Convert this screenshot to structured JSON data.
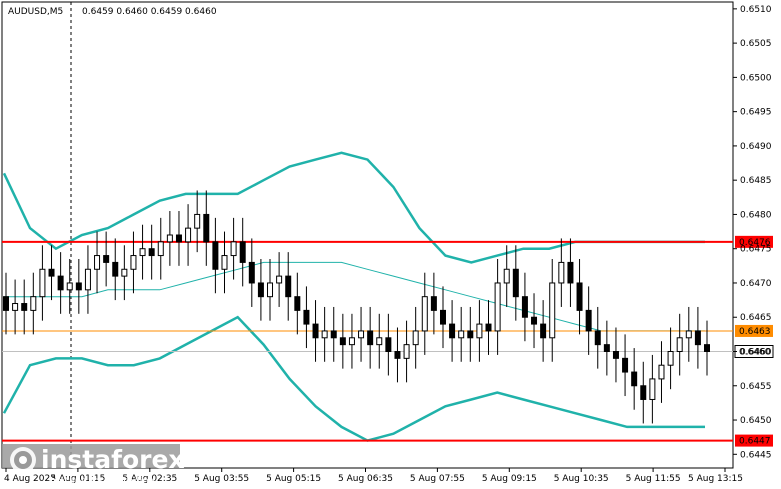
{
  "header": {
    "symbol_tf": "AUDUSD,M5",
    "ohlc": "0.6459 0.6460 0.6459 0.6460"
  },
  "watermark": {
    "brand": "instaforex",
    "tagline": "Instant Forex Trading"
  },
  "colors": {
    "bull_candle": "#000000",
    "bear_candle": "#000000",
    "bollinger": "#20b2aa",
    "support_resistance": "#ff0000",
    "orange_level": "#ff8c00",
    "price_line": "#c0c0c0"
  },
  "chart_data": {
    "type": "candlestick",
    "title": "AUDUSD,M5",
    "ylim": [
      0.6443,
      0.6511
    ],
    "y_ticks": [
      "0.6510",
      "0.6505",
      "0.6500",
      "0.6495",
      "0.6490",
      "0.6485",
      "0.6480",
      "0.6475",
      "0.6470",
      "0.6465",
      "0.6460",
      "0.6455",
      "0.6450",
      "0.6445"
    ],
    "x_tick_labels": [
      "4 Aug 2023",
      "5 Aug 01:15",
      "5 Aug 02:35",
      "5 Aug 03:55",
      "5 Aug 05:15",
      "5 Aug 06:35",
      "5 Aug 07:55",
      "5 Aug 09:15",
      "5 Aug 10:35",
      "5 Aug 11:55",
      "5 Aug 13:15"
    ],
    "levels": [
      {
        "name": "resistance",
        "value": "0.6476",
        "color": "#ff0000"
      },
      {
        "name": "orange-level",
        "value": "0.6463",
        "color": "#ff8c00"
      },
      {
        "name": "current-price",
        "value": "0.6460",
        "color": "#c0c0c0"
      },
      {
        "name": "support",
        "value": "0.6447",
        "color": "#ff0000"
      }
    ],
    "closes": [
      0.6466,
      0.6467,
      0.6466,
      0.6468,
      0.6472,
      0.6471,
      0.6469,
      0.647,
      0.6469,
      0.6472,
      0.6474,
      0.6473,
      0.6471,
      0.6472,
      0.6474,
      0.6475,
      0.6474,
      0.6476,
      0.6477,
      0.6476,
      0.6478,
      0.648,
      0.6476,
      0.6472,
      0.6474,
      0.6476,
      0.6473,
      0.647,
      0.6468,
      0.647,
      0.6471,
      0.6468,
      0.6466,
      0.6464,
      0.6462,
      0.6463,
      0.6462,
      0.6461,
      0.6462,
      0.6463,
      0.6461,
      0.6462,
      0.646,
      0.6459,
      0.6461,
      0.6463,
      0.6468,
      0.6466,
      0.6464,
      0.6462,
      0.6463,
      0.6462,
      0.6464,
      0.6463,
      0.647,
      0.6472,
      0.6468,
      0.6465,
      0.6464,
      0.6462,
      0.647,
      0.6473,
      0.647,
      0.6466,
      0.6463,
      0.6461,
      0.646,
      0.6459,
      0.6457,
      0.6455,
      0.6453,
      0.6456,
      0.6458,
      0.646,
      0.6462,
      0.6463,
      0.6461,
      0.646
    ],
    "series": [
      {
        "name": "",
        "role": "middle",
        "values": [
          0.6468,
          0.6468,
          0.6468,
          0.6468,
          0.6469,
          0.6469,
          0.6469,
          0.647,
          0.6471,
          0.6472,
          0.6473,
          0.6473,
          0.6473,
          0.6473,
          0.6472,
          0.6471,
          0.647,
          0.6469,
          0.6468,
          0.6467,
          0.6466,
          0.6465,
          0.6464,
          0.6463,
          0.6463,
          0.6463,
          0.6463,
          0.6463
        ]
      },
      {
        "name": "",
        "role": "upper",
        "values": [
          0.6486,
          0.6478,
          0.6475,
          0.6477,
          0.6478,
          0.648,
          0.6482,
          0.6483,
          0.6483,
          0.6483,
          0.6485,
          0.6487,
          0.6488,
          0.6489,
          0.6488,
          0.6484,
          0.6478,
          0.6474,
          0.6473,
          0.6474,
          0.6475,
          0.6475,
          0.6476,
          0.6476,
          0.6476,
          0.6476,
          0.6476,
          0.6476
        ]
      },
      {
        "name": "",
        "role": "lower",
        "values": [
          0.6451,
          0.6458,
          0.6459,
          0.6459,
          0.6458,
          0.6458,
          0.6459,
          0.6461,
          0.6463,
          0.6465,
          0.6461,
          0.6456,
          0.6452,
          0.6449,
          0.6447,
          0.6448,
          0.645,
          0.6452,
          0.6453,
          0.6454,
          0.6453,
          0.6452,
          0.6451,
          0.645,
          0.6449,
          0.6449,
          0.6449,
          0.6449
        ]
      }
    ]
  }
}
